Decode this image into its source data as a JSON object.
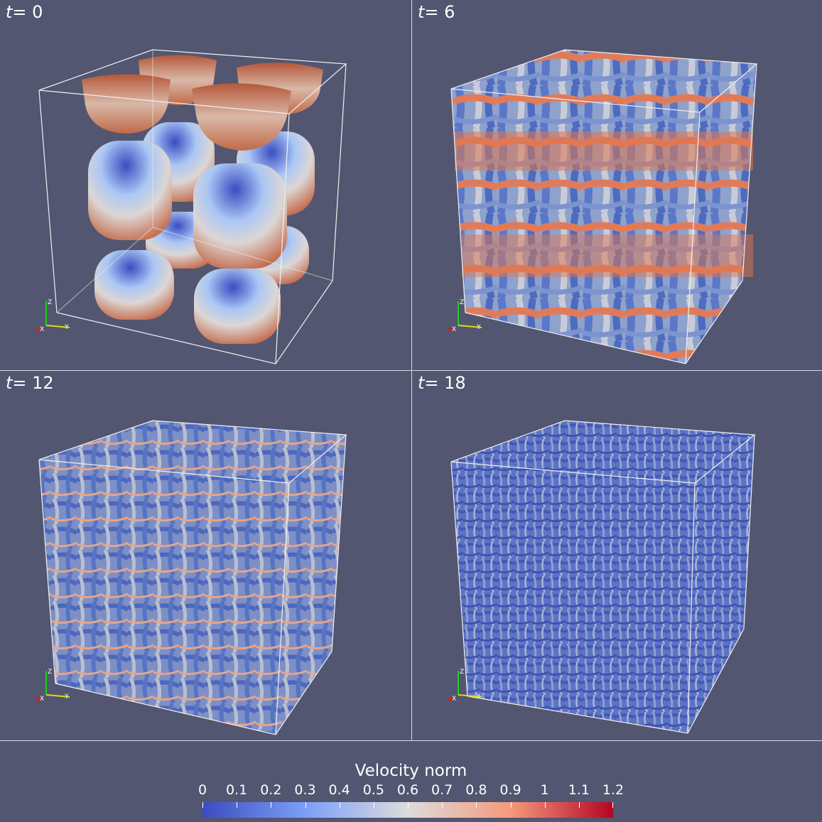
{
  "panels": [
    {
      "time_var": "t",
      "time_value": "= 0"
    },
    {
      "time_var": "t",
      "time_value": "= 6"
    },
    {
      "time_var": "t",
      "time_value": "= 12"
    },
    {
      "time_var": "t",
      "time_value": "= 18"
    }
  ],
  "axes_triad": {
    "x": "X",
    "y": "Y",
    "z": "Z"
  },
  "colorbar": {
    "title": "Velocity norm",
    "ticks": [
      "0",
      "0.1",
      "0.2",
      "0.3",
      "0.4",
      "0.5",
      "0.6",
      "0.7",
      "0.8",
      "0.9",
      "1",
      "1.1",
      "1.2"
    ],
    "min": 0,
    "max": 1.2,
    "colormap": "cool-to-warm",
    "colors": {
      "low": "#3b4cc0",
      "mid": "#dddcdc",
      "high": "#b40426"
    }
  },
  "colors": {
    "background": "#525670",
    "divider": "#d8d8e0"
  }
}
